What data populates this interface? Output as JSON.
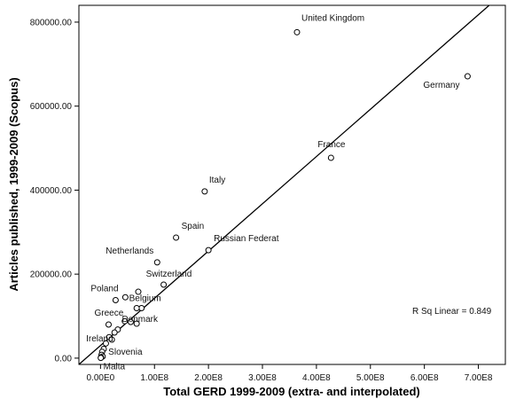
{
  "chart_data": {
    "type": "scatter",
    "title": "",
    "xlabel": "Total GERD 1999-2009 (extra- and interpolated)",
    "ylabel": "Articles published, 1999-2009 (Scopus)",
    "xlim": [
      -40000000.0,
      750000000.0
    ],
    "ylim": [
      -15000,
      840000
    ],
    "x_ticks": [
      0,
      100000000.0,
      200000000.0,
      300000000.0,
      400000000.0,
      500000000.0,
      600000000.0,
      700000000.0
    ],
    "x_tick_labels": [
      "0.00E0",
      "1.00E8",
      "2.00E8",
      "3.00E8",
      "4.00E8",
      "5.00E8",
      "6.00E8",
      "7.00E8"
    ],
    "y_ticks": [
      0,
      200000,
      400000,
      600000,
      800000
    ],
    "y_tick_labels": [
      "0.00",
      "200000.00",
      "400000.00",
      "600000.00",
      "800000.00"
    ],
    "grid": false,
    "points": [
      {
        "x": 364000000.0,
        "y": 776000,
        "label": "United Kingdom"
      },
      {
        "x": 680000000.0,
        "y": 671000,
        "label": "Germany"
      },
      {
        "x": 427000000.0,
        "y": 477000,
        "label": "France"
      },
      {
        "x": 193000000.0,
        "y": 397000,
        "label": "Italy"
      },
      {
        "x": 140000000.0,
        "y": 287000,
        "label": "Spain"
      },
      {
        "x": 200000000.0,
        "y": 257000,
        "label": "Russian Federat"
      },
      {
        "x": 105000000.0,
        "y": 228000,
        "label": "Netherlands"
      },
      {
        "x": 117000000.0,
        "y": 175000,
        "label": "Switzerland"
      },
      {
        "x": 28000000.0,
        "y": 138000,
        "label": "Poland"
      },
      {
        "x": 46000000.0,
        "y": 145000,
        "label": ""
      },
      {
        "x": 70000000.0,
        "y": 158000,
        "label": ""
      },
      {
        "x": 76000000.0,
        "y": 119000,
        "label": "Belgium"
      },
      {
        "x": 67000000.0,
        "y": 119000,
        "label": ""
      },
      {
        "x": 15000000.0,
        "y": 80000,
        "label": "Greece"
      },
      {
        "x": 56000000.0,
        "y": 86000,
        "label": "Denmark"
      },
      {
        "x": 67000000.0,
        "y": 82000,
        "label": ""
      },
      {
        "x": 45000000.0,
        "y": 88000,
        "label": ""
      },
      {
        "x": 32000000.0,
        "y": 68000,
        "label": ""
      },
      {
        "x": 26000000.0,
        "y": 61000,
        "label": ""
      },
      {
        "x": 16000000.0,
        "y": 50000,
        "label": "Ireland"
      },
      {
        "x": 21000000.0,
        "y": 44000,
        "label": ""
      },
      {
        "x": 10000000.0,
        "y": 35000,
        "label": ""
      },
      {
        "x": 6000000.0,
        "y": 22000,
        "label": ""
      },
      {
        "x": 3000000.0,
        "y": 15000,
        "label": "Slovenia"
      },
      {
        "x": 2000000.0,
        "y": 8000,
        "label": ""
      },
      {
        "x": 4000000.0,
        "y": 4000,
        "label": ""
      },
      {
        "x": 1000000.0,
        "y": 2000,
        "label": ""
      },
      {
        "x": 500000.0,
        "y": 500,
        "label": "Malta"
      }
    ],
    "fit_line": {
      "type": "linear",
      "x": [
        -40000000.0,
        720000000.0
      ],
      "y": [
        -15000,
        840000
      ]
    },
    "annotation": "R Sq Linear = 0.849"
  }
}
